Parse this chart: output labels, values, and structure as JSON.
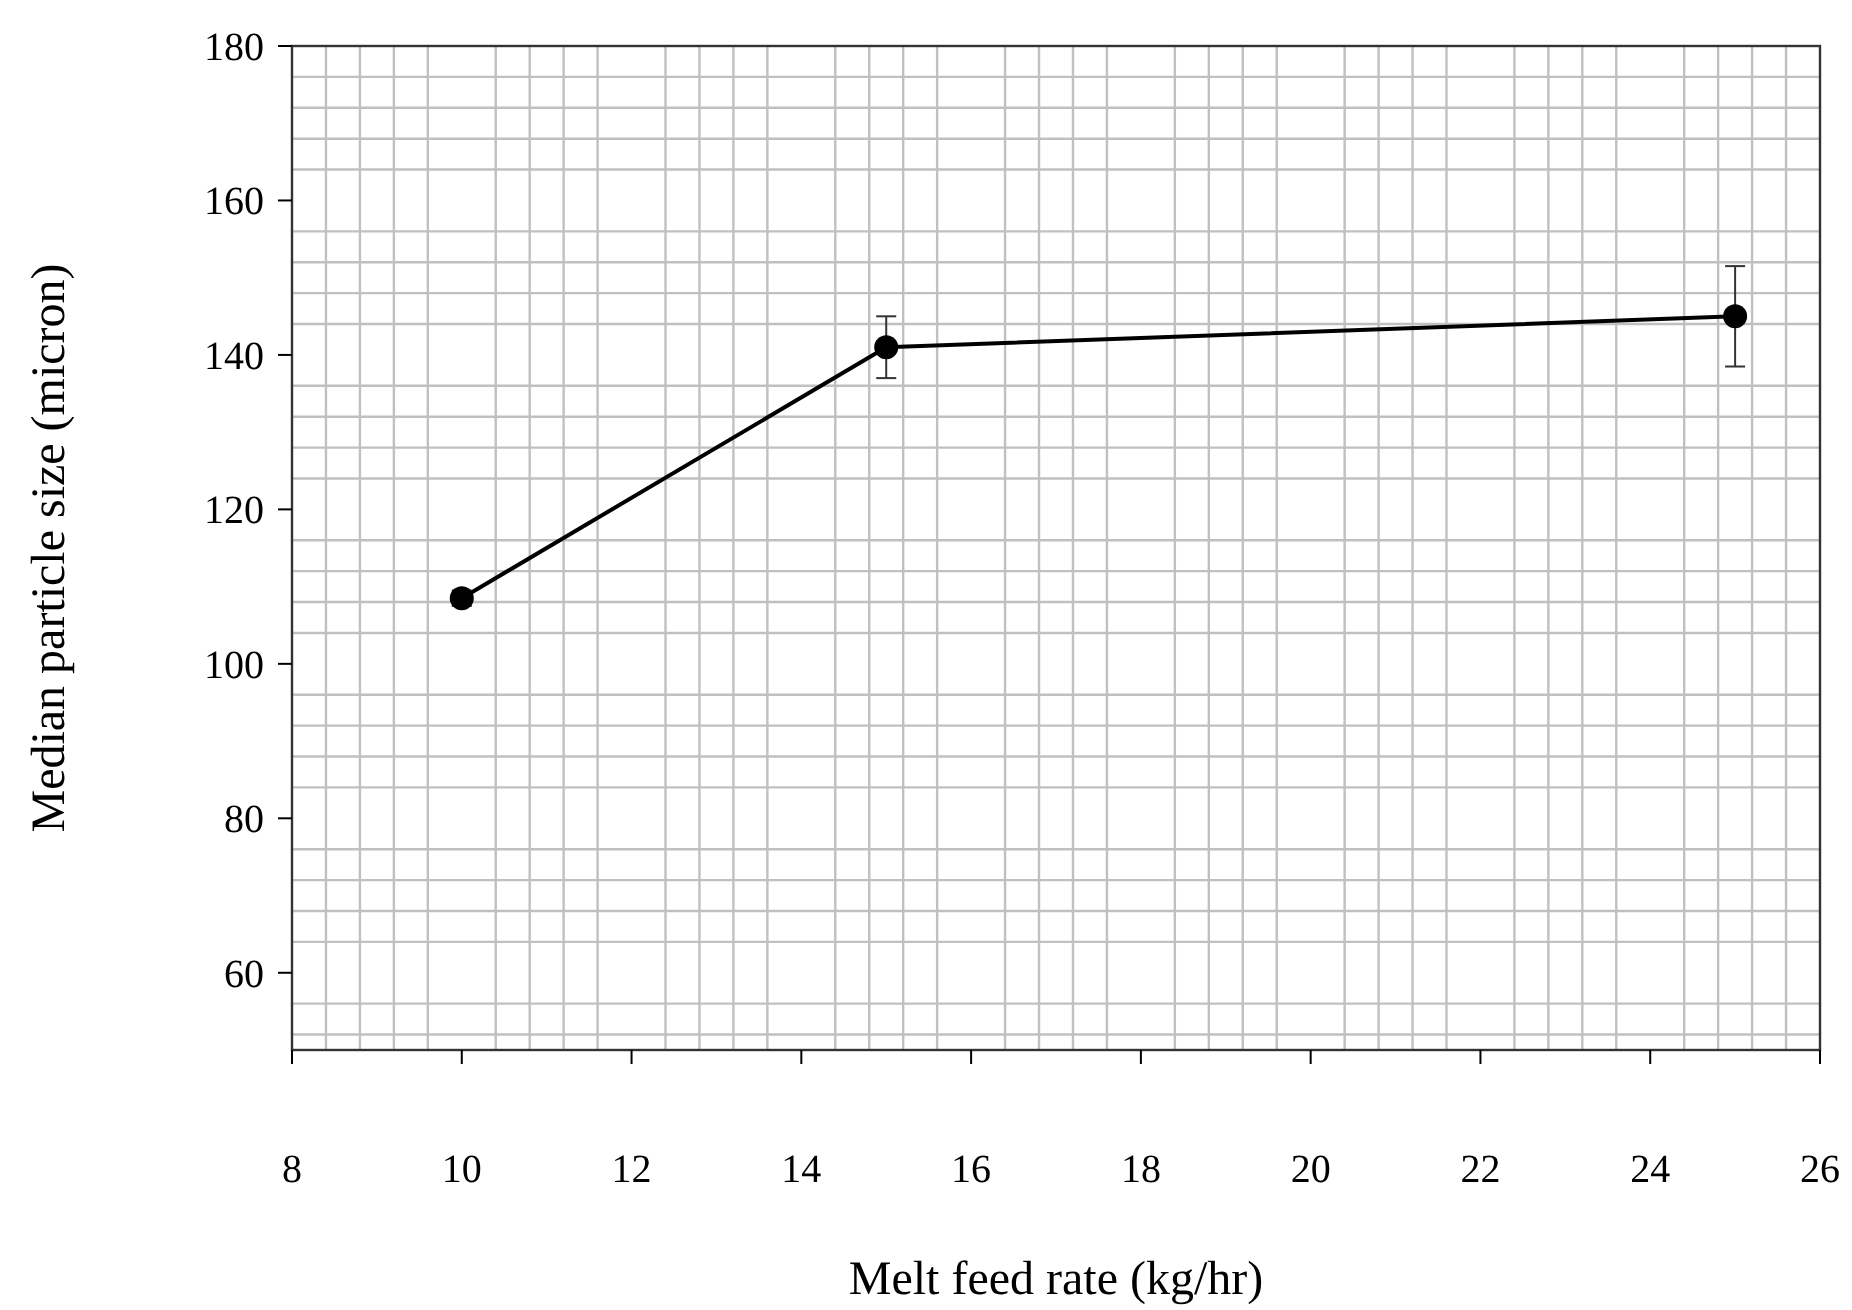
{
  "chart_data": {
    "type": "line",
    "xlabel": "Melt feed rate (kg/hr)",
    "ylabel": "Median particle size (micron)",
    "x": [
      10,
      15,
      25
    ],
    "series": [
      {
        "color": "#000000",
        "values": [
          108.5,
          141,
          145
        ],
        "errors": [
          1,
          4,
          6.5
        ]
      }
    ],
    "xlim": [
      8,
      26
    ],
    "xticks": [
      8,
      10,
      12,
      14,
      16,
      18,
      20,
      22,
      24,
      26
    ],
    "ylim": [
      50,
      180
    ],
    "yticks": [
      60,
      80,
      100,
      120,
      140,
      160,
      180
    ],
    "grid": true,
    "marker": "circle",
    "line_style": "solid"
  }
}
